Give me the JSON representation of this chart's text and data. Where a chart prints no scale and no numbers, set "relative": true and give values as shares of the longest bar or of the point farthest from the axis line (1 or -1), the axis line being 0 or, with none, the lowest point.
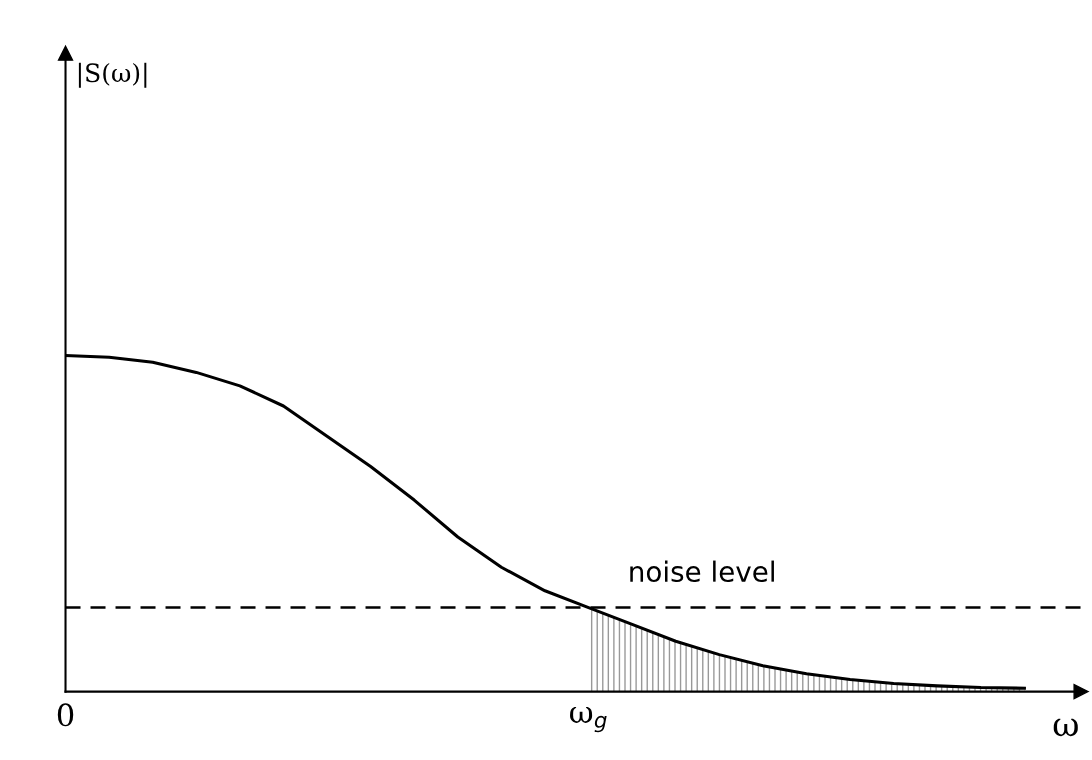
{
  "chart_data": {
    "type": "line",
    "relative": true,
    "xlabel": "ω",
    "annotations": [
      "|S(ω)|"
    ],
    "categories": [
      "0",
      null,
      null,
      null,
      null,
      null,
      null,
      null,
      null,
      null,
      null,
      null,
      "ω$_{g}$",
      null,
      null,
      null,
      null,
      null,
      null,
      null,
      null,
      null,
      null
    ],
    "series": [
      {
        "color": "#000000",
        "values": [
          1.0,
          0.995,
          0.98,
          0.95,
          0.91,
          0.85,
          0.76,
          0.67,
          0.57,
          0.46,
          0.37,
          0.3,
          0.25,
          0.2,
          0.15,
          0.11,
          0.077,
          0.053,
          0.036,
          0.024,
          0.017,
          0.012,
          0.01
        ]
      },
      {
        "type": "area",
        "color": "#999999",
        "values": [
          null,
          null,
          null,
          null,
          null,
          null,
          null,
          null,
          null,
          null,
          null,
          null,
          0.25,
          0.2,
          0.15,
          0.11,
          0.077,
          0.053,
          0.036,
          0.024,
          0.017,
          0.012,
          0.01
        ]
      }
    ],
    "ref_lines": [
      {
        "axis": "y",
        "value": 0.25,
        "label": "noise level",
        "color": "#000000",
        "line_style": "dashed"
      }
    ],
    "tick_labels": "x",
    "grid": false,
    "legend": false,
    "marker": "none",
    "line_style": "solid"
  }
}
